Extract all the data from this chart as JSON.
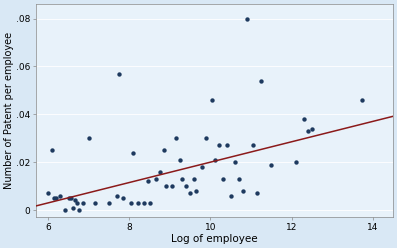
{
  "title": "",
  "xlabel": "Log of employee",
  "ylabel": "Number of Patent per employee",
  "xlim": [
    5.7,
    14.5
  ],
  "ylim": [
    -0.003,
    0.086
  ],
  "xticks": [
    6,
    8,
    10,
    12,
    14
  ],
  "yticks": [
    0,
    0.02,
    0.04,
    0.06,
    0.08
  ],
  "ytick_labels": [
    "0",
    ".02",
    ".04",
    ".06",
    ".08"
  ],
  "fig_background_color": "#d9e8f5",
  "plot_background": "#e8f2fa",
  "dot_color": "#1e3a5f",
  "line_color": "#8b1a1a",
  "scatter_x": [
    6.0,
    6.1,
    6.15,
    6.2,
    6.3,
    6.4,
    6.5,
    6.55,
    6.6,
    6.65,
    6.7,
    6.75,
    6.85,
    7.0,
    7.15,
    7.75,
    7.5,
    7.7,
    7.85,
    8.05,
    8.1,
    8.2,
    8.35,
    8.45,
    8.5,
    8.65,
    8.75,
    8.85,
    8.9,
    9.05,
    9.15,
    9.25,
    9.3,
    9.4,
    9.5,
    9.6,
    9.65,
    9.8,
    9.9,
    10.05,
    10.1,
    10.2,
    10.3,
    10.4,
    10.5,
    10.6,
    10.7,
    10.8,
    10.9,
    11.05,
    11.15,
    11.25,
    11.5,
    12.1,
    12.3,
    12.4,
    12.5,
    13.75
  ],
  "scatter_y": [
    0.007,
    0.025,
    0.005,
    0.005,
    0.006,
    0.0,
    0.005,
    0.005,
    0.001,
    0.004,
    0.003,
    0.0,
    0.003,
    0.03,
    0.003,
    0.057,
    0.003,
    0.006,
    0.005,
    0.003,
    0.024,
    0.003,
    0.003,
    0.012,
    0.003,
    0.013,
    0.016,
    0.025,
    0.01,
    0.01,
    0.03,
    0.021,
    0.013,
    0.01,
    0.007,
    0.013,
    0.008,
    0.018,
    0.03,
    0.046,
    0.021,
    0.027,
    0.013,
    0.027,
    0.006,
    0.02,
    0.013,
    0.008,
    0.08,
    0.027,
    0.007,
    0.054,
    0.019,
    0.02,
    0.038,
    0.033,
    0.034,
    0.046
  ],
  "line_x_start": 5.7,
  "line_x_end": 14.5,
  "line_slope": 0.00425,
  "line_intercept": -0.0225
}
